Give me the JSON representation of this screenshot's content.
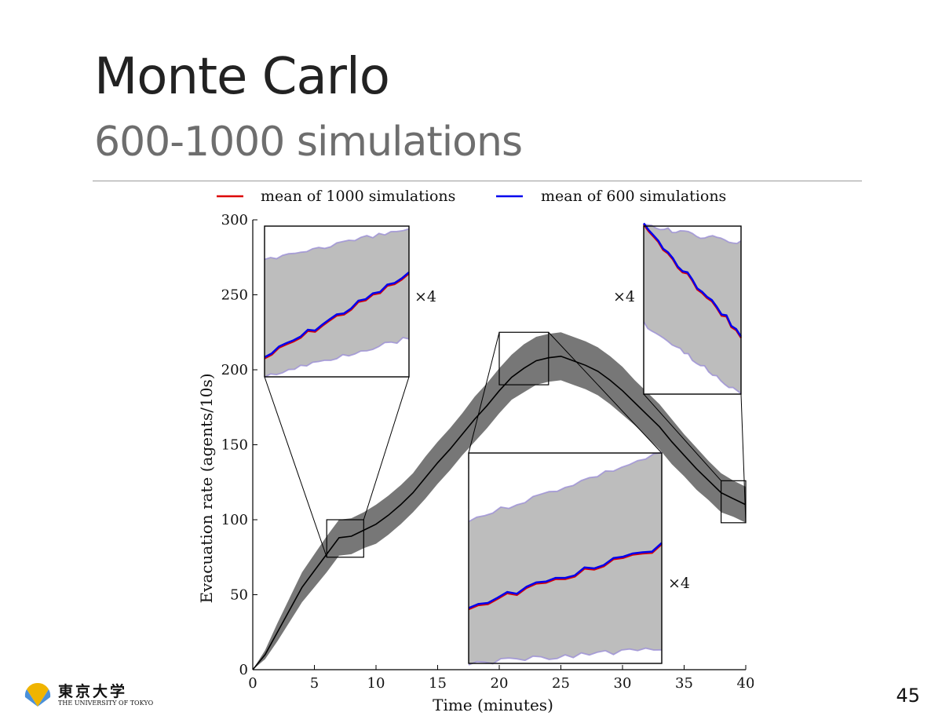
{
  "slide": {
    "title": "Monte Carlo",
    "subtitle": "600-1000 simulations",
    "page_number": "45"
  },
  "logo": {
    "text_jp": "東京大学",
    "text_en": "THE UNIVERSITY OF TOKYO",
    "icon": "ginkgo-leaf-icon"
  },
  "chart_data": {
    "type": "line",
    "xlabel": "Time (minutes)",
    "ylabel": "Evacuation rate (agents/10s)",
    "xlim": [
      0,
      40
    ],
    "ylim": [
      0,
      300
    ],
    "xticks": [
      0,
      5,
      10,
      15,
      20,
      25,
      30,
      35,
      40
    ],
    "yticks": [
      0,
      50,
      100,
      150,
      200,
      250,
      300
    ],
    "legend_placement": "top",
    "grid": false,
    "series": [
      {
        "name": "mean of 1000 simulations",
        "color": "#dd0000"
      },
      {
        "name": "mean of 600 simulations",
        "color": "#0000ee"
      }
    ],
    "mean": {
      "x": [
        0,
        1,
        2,
        3,
        4,
        5,
        6,
        7,
        8,
        9,
        10,
        11,
        12,
        13,
        14,
        15,
        16,
        17,
        18,
        19,
        20,
        21,
        22,
        23,
        24,
        25,
        26,
        27,
        28,
        29,
        30,
        31,
        32,
        33,
        34,
        35,
        36,
        37,
        38,
        39,
        40
      ],
      "y": [
        0,
        10,
        25,
        40,
        55,
        66,
        77,
        88,
        89,
        93,
        97,
        103,
        110,
        118,
        128,
        138,
        147,
        157,
        167,
        176,
        186,
        195,
        201,
        206,
        208,
        209,
        206,
        203,
        199,
        193,
        186,
        178,
        170,
        162,
        152,
        143,
        134,
        126,
        118,
        114,
        110
      ]
    },
    "band_halfwidth": [
      0,
      3,
      6,
      8,
      10,
      11,
      12,
      12,
      12,
      12,
      13,
      13,
      13,
      13,
      14,
      14,
      14,
      14,
      15,
      15,
      15,
      15,
      16,
      16,
      16,
      16,
      16,
      16,
      16,
      16,
      16,
      15,
      15,
      15,
      15,
      14,
      14,
      13,
      13,
      12,
      12
    ],
    "annotations": [
      "×4",
      "×4",
      "×4"
    ],
    "zoom_regions": [
      {
        "xrange": [
          6,
          9
        ],
        "yrange": [
          75,
          100
        ]
      },
      {
        "xrange": [
          20,
          24
        ],
        "yrange": [
          190,
          225
        ]
      },
      {
        "xrange": [
          38,
          40
        ],
        "yrange": [
          98,
          126
        ]
      }
    ]
  }
}
